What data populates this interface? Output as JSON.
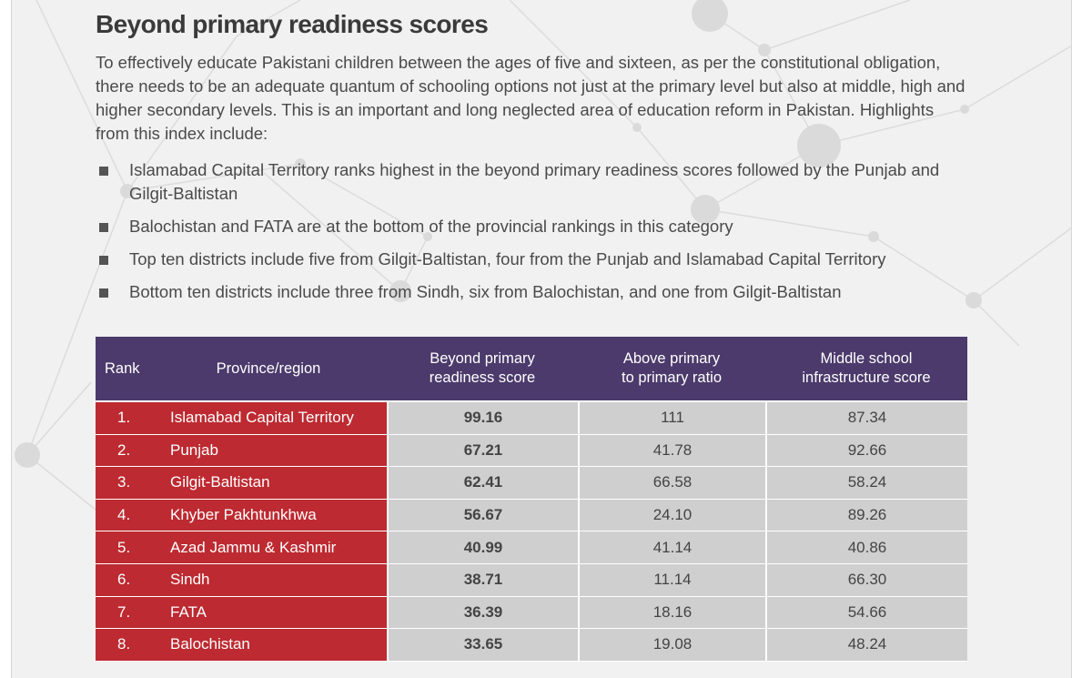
{
  "heading": "Beyond primary readiness scores",
  "intro": "To effectively educate Pakistani children between the ages of five and sixteen, as per the constitutional obligation, there needs to be an adequate quantum of schooling options not just at the primary level but also at middle, high and higher secondary  levels. This is an important and long neglected area of education reform in Pakistan. Highlights from this index include:",
  "bullets": [
    "Islamabad Capital Territory ranks highest in the beyond primary readiness scores followed by the Punjab and Gilgit-Baltistan",
    "Balochistan and FATA are at the bottom of the provincial rankings in this category",
    "Top ten districts include five from Gilgit-Baltistan, four from the Punjab and Islamabad Capital Territory",
    "Bottom ten districts include three from Sindh, six from Balochistan, and one from Gilgit-Baltistan"
  ],
  "table": {
    "headers": {
      "rank": "Rank",
      "province": "Province/region",
      "score1_line1": "Beyond primary",
      "score1_line2": "readiness score",
      "score2_line1": "Above primary",
      "score2_line2": "to primary ratio",
      "score3_line1": "Middle school",
      "score3_line2": "infrastructure score"
    },
    "rows": [
      {
        "rank": "1.",
        "province": "Islamabad Capital Territory",
        "readiness": "99.16",
        "ratio": "111",
        "infrastructure": "87.34"
      },
      {
        "rank": "2.",
        "province": "Punjab",
        "readiness": "67.21",
        "ratio": "41.78",
        "infrastructure": "92.66"
      },
      {
        "rank": "3.",
        "province": "Gilgit-Baltistan",
        "readiness": "62.41",
        "ratio": "66.58",
        "infrastructure": "58.24"
      },
      {
        "rank": "4.",
        "province": "Khyber Pakhtunkhwa",
        "readiness": "56.67",
        "ratio": "24.10",
        "infrastructure": "89.26"
      },
      {
        "rank": "5.",
        "province": "Azad Jammu & Kashmir",
        "readiness": "40.99",
        "ratio": "41.14",
        "infrastructure": "40.86"
      },
      {
        "rank": "6.",
        "province": "Sindh",
        "readiness": "38.71",
        "ratio": "11.14",
        "infrastructure": "66.30"
      },
      {
        "rank": "7.",
        "province": "FATA",
        "readiness": "36.39",
        "ratio": "18.16",
        "infrastructure": "54.66"
      },
      {
        "rank": "8.",
        "province": "Balochistan",
        "readiness": "33.65",
        "ratio": "19.08",
        "infrastructure": "48.24"
      }
    ]
  },
  "colors": {
    "header_bg": "#4b3a6b",
    "rank_bg": "#bd2a31",
    "cell_bg": "#cfcfcf",
    "page_bg": "#f1f1f1"
  }
}
